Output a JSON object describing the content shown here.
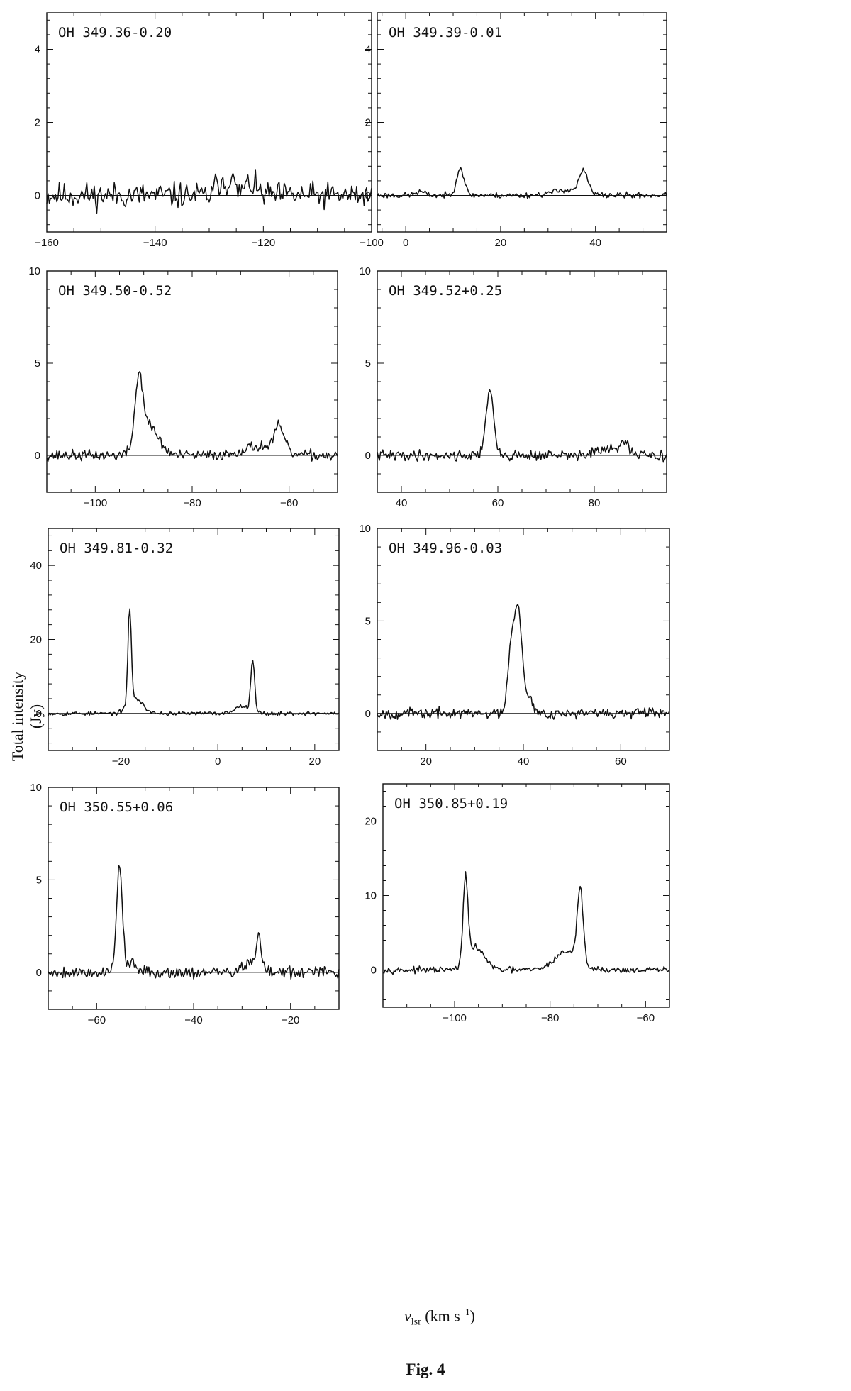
{
  "figure": {
    "caption": "Fig. 4",
    "ylabel": "Total intensity (Jy)",
    "xlabel_var": "v",
    "xlabel_sub": "lsr",
    "xlabel_units_pre": "(km s",
    "xlabel_units_sup": "−1",
    "xlabel_units_post": ")"
  },
  "chart_data": [
    {
      "type": "line",
      "title": "OH 349.36-0.20",
      "xlim": [
        -160,
        -100
      ],
      "ylim": [
        -1,
        5
      ],
      "xticks": [
        -160,
        -140,
        -120,
        -100
      ],
      "yticks": [
        0,
        2,
        4
      ],
      "noise": 0.22,
      "seed": 11,
      "peaks": [
        [
          -128.5,
          0.4,
          0.4
        ],
        [
          -127.5,
          0.45,
          0.35
        ],
        [
          -126,
          0.6,
          0.5
        ],
        [
          -122.5,
          0.3,
          1.2
        ]
      ]
    },
    {
      "type": "line",
      "title": "OH 349.39-0.01",
      "xlim": [
        -6,
        55
      ],
      "ylim": [
        -1,
        5
      ],
      "xticks": [
        0,
        20,
        40
      ],
      "yticks": [
        0,
        2,
        4
      ],
      "noise": 0.05,
      "seed": 23,
      "peaks": [
        [
          11.5,
          0.75,
          0.8
        ],
        [
          37.5,
          0.6,
          0.9
        ],
        [
          34,
          0.15,
          3.0
        ],
        [
          3,
          0.1,
          1.0
        ]
      ]
    },
    {
      "type": "line",
      "title": "OH 349.50-0.52",
      "xlim": [
        -110,
        -50
      ],
      "ylim": [
        -2,
        10
      ],
      "xticks": [
        -100,
        -80,
        -60
      ],
      "yticks": [
        0,
        5,
        10
      ],
      "noise": 0.18,
      "seed": 37,
      "peaks": [
        [
          -91,
          3.5,
          0.8
        ],
        [
          -89,
          1.6,
          2.0
        ],
        [
          -62,
          1.3,
          1.0
        ],
        [
          -66,
          0.5,
          3.5
        ]
      ]
    },
    {
      "type": "line",
      "title": "OH 349.52+0.25",
      "xlim": [
        35,
        95
      ],
      "ylim": [
        -2,
        10
      ],
      "xticks": [
        40,
        60,
        80
      ],
      "yticks": [
        0,
        5,
        10
      ],
      "noise": 0.18,
      "seed": 41,
      "peaks": [
        [
          58.3,
          3.5,
          0.8
        ],
        [
          86,
          0.7,
          1.0
        ],
        [
          82,
          0.3,
          2.0
        ]
      ]
    },
    {
      "type": "line",
      "title": "OH 349.81-0.32",
      "xlim": [
        -35,
        25
      ],
      "ylim": [
        -10,
        50
      ],
      "xticks": [
        -20,
        0,
        20
      ],
      "yticks": [
        0,
        20,
        40
      ],
      "noise": 0.35,
      "seed": 53,
      "peaks": [
        [
          -18.2,
          26,
          0.35
        ],
        [
          -17,
          4,
          1.5
        ],
        [
          7.2,
          14,
          0.4
        ],
        [
          5,
          2,
          1.5
        ]
      ]
    },
    {
      "type": "line",
      "title": "OH 349.96-0.03",
      "xlim": [
        10,
        70
      ],
      "ylim": [
        -2,
        10
      ],
      "xticks": [
        20,
        40,
        60
      ],
      "yticks": [
        0,
        5,
        10
      ],
      "noise": 0.18,
      "seed": 67,
      "peaks": [
        [
          37.5,
          3.6,
          0.7
        ],
        [
          39,
          5.5,
          0.75
        ],
        [
          41,
          1.0,
          0.7
        ]
      ]
    },
    {
      "type": "line",
      "title": "OH 350.55+0.06",
      "xlim": [
        -70,
        -10
      ],
      "ylim": [
        -2,
        10
      ],
      "xticks": [
        -60,
        -40,
        -20
      ],
      "yticks": [
        0,
        5,
        10
      ],
      "noise": 0.2,
      "seed": 79,
      "peaks": [
        [
          -55.3,
          5.8,
          0.6
        ],
        [
          -26.5,
          1.8,
          0.5
        ],
        [
          -28.5,
          0.5,
          1.5
        ],
        [
          -53,
          0.5,
          1.0
        ]
      ]
    },
    {
      "type": "line",
      "title": "OH 350.85+0.19",
      "xlim": [
        -115,
        -55
      ],
      "ylim": [
        -5,
        25
      ],
      "xticks": [
        -100,
        -80,
        -60
      ],
      "yticks": [
        0,
        10,
        20
      ],
      "noise": 0.25,
      "seed": 97,
      "peaks": [
        [
          -97.7,
          11.5,
          0.5
        ],
        [
          -95.5,
          3.0,
          1.8
        ],
        [
          -73.7,
          10,
          0.6
        ],
        [
          -76.5,
          2.5,
          2.5
        ]
      ]
    }
  ]
}
